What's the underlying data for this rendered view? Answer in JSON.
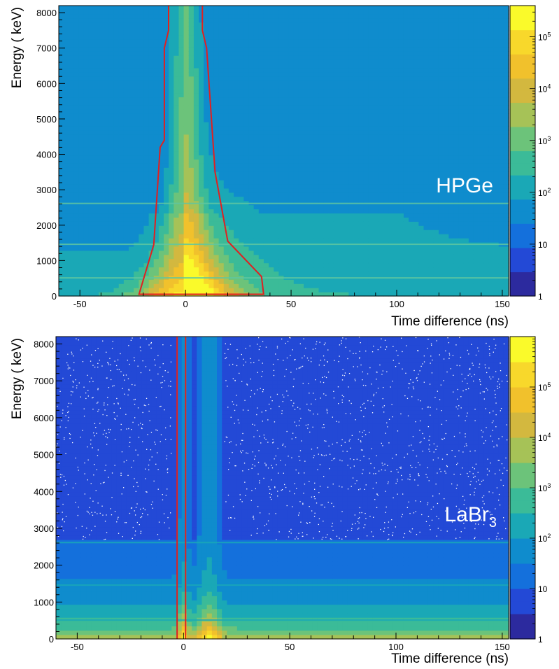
{
  "chart_data": [
    {
      "type": "heatmap",
      "detector_label": "HPGe",
      "detector_sub": "",
      "xlabel": "Time difference (ns)",
      "ylabel": "Energy ( keV)",
      "xlim": [
        -60,
        153
      ],
      "ylim": [
        0,
        8200
      ],
      "xticks": [
        -50,
        0,
        50,
        100,
        150
      ],
      "yticks": [
        0,
        1000,
        2000,
        3000,
        4000,
        5000,
        6000,
        7000,
        8000
      ],
      "zscale": "log",
      "zlim": [
        1,
        400000
      ],
      "colorbar_ticks": [
        {
          "value": 10,
          "label": "10",
          "exp": ""
        },
        {
          "value": 100,
          "label": "10",
          "exp": "2"
        },
        {
          "value": 1000,
          "label": "10",
          "exp": "3"
        },
        {
          "value": 10000,
          "label": "10",
          "exp": "4"
        },
        {
          "value": 100000,
          "label": "10",
          "exp": "5"
        },
        {
          "value": 1,
          "label": "1",
          "exp": ""
        }
      ],
      "prompt_peak_ns": 0,
      "horizontal_lines_keV": [
        2614,
        1460,
        511
      ],
      "gate_polygon": [
        [
          -8,
          8200
        ],
        [
          -8,
          7500
        ],
        [
          -10,
          7000
        ],
        [
          -10,
          4400
        ],
        [
          -12,
          4200
        ],
        [
          -15,
          1450
        ],
        [
          -22,
          50
        ],
        [
          37,
          50
        ],
        [
          36,
          550
        ],
        [
          20,
          1550
        ],
        [
          14,
          3500
        ],
        [
          10,
          7000
        ],
        [
          8,
          7500
        ],
        [
          8,
          8200
        ]
      ],
      "gate_color": "#e02020"
    },
    {
      "type": "heatmap",
      "detector_label": "LaBr",
      "detector_sub": "3",
      "xlabel": "Time difference (ns)",
      "ylabel": "Energy ( keV)",
      "xlim": [
        -60,
        153
      ],
      "ylim": [
        0,
        8200
      ],
      "xticks": [
        -50,
        0,
        50,
        100,
        150
      ],
      "yticks": [
        0,
        1000,
        2000,
        3000,
        4000,
        5000,
        6000,
        7000,
        8000
      ],
      "zscale": "log",
      "zlim": [
        1,
        1000000
      ],
      "colorbar_ticks": [
        {
          "value": 10,
          "label": "10",
          "exp": ""
        },
        {
          "value": 100,
          "label": "10",
          "exp": "2"
        },
        {
          "value": 1000,
          "label": "10",
          "exp": "3"
        },
        {
          "value": 10000,
          "label": "10",
          "exp": "4"
        },
        {
          "value": 100000,
          "label": "10",
          "exp": "5"
        },
        {
          "value": 1,
          "label": "1",
          "exp": ""
        }
      ],
      "prompt_peak_ns": 0,
      "secondary_peak_ns": 12,
      "horizontal_lines_keV": [
        2614,
        1460,
        511
      ],
      "gate_lines_ns": [
        -3,
        1
      ],
      "gate_color": "#e02020"
    }
  ],
  "colors": {
    "palette": [
      "#2c2a9e",
      "#2349d6",
      "#1470dc",
      "#0f8ccd",
      "#1aa8b6",
      "#3bbb98",
      "#6cc37a",
      "#a6c257",
      "#d3b83f",
      "#f1c12c",
      "#f8d82b",
      "#fafa2a"
    ]
  }
}
